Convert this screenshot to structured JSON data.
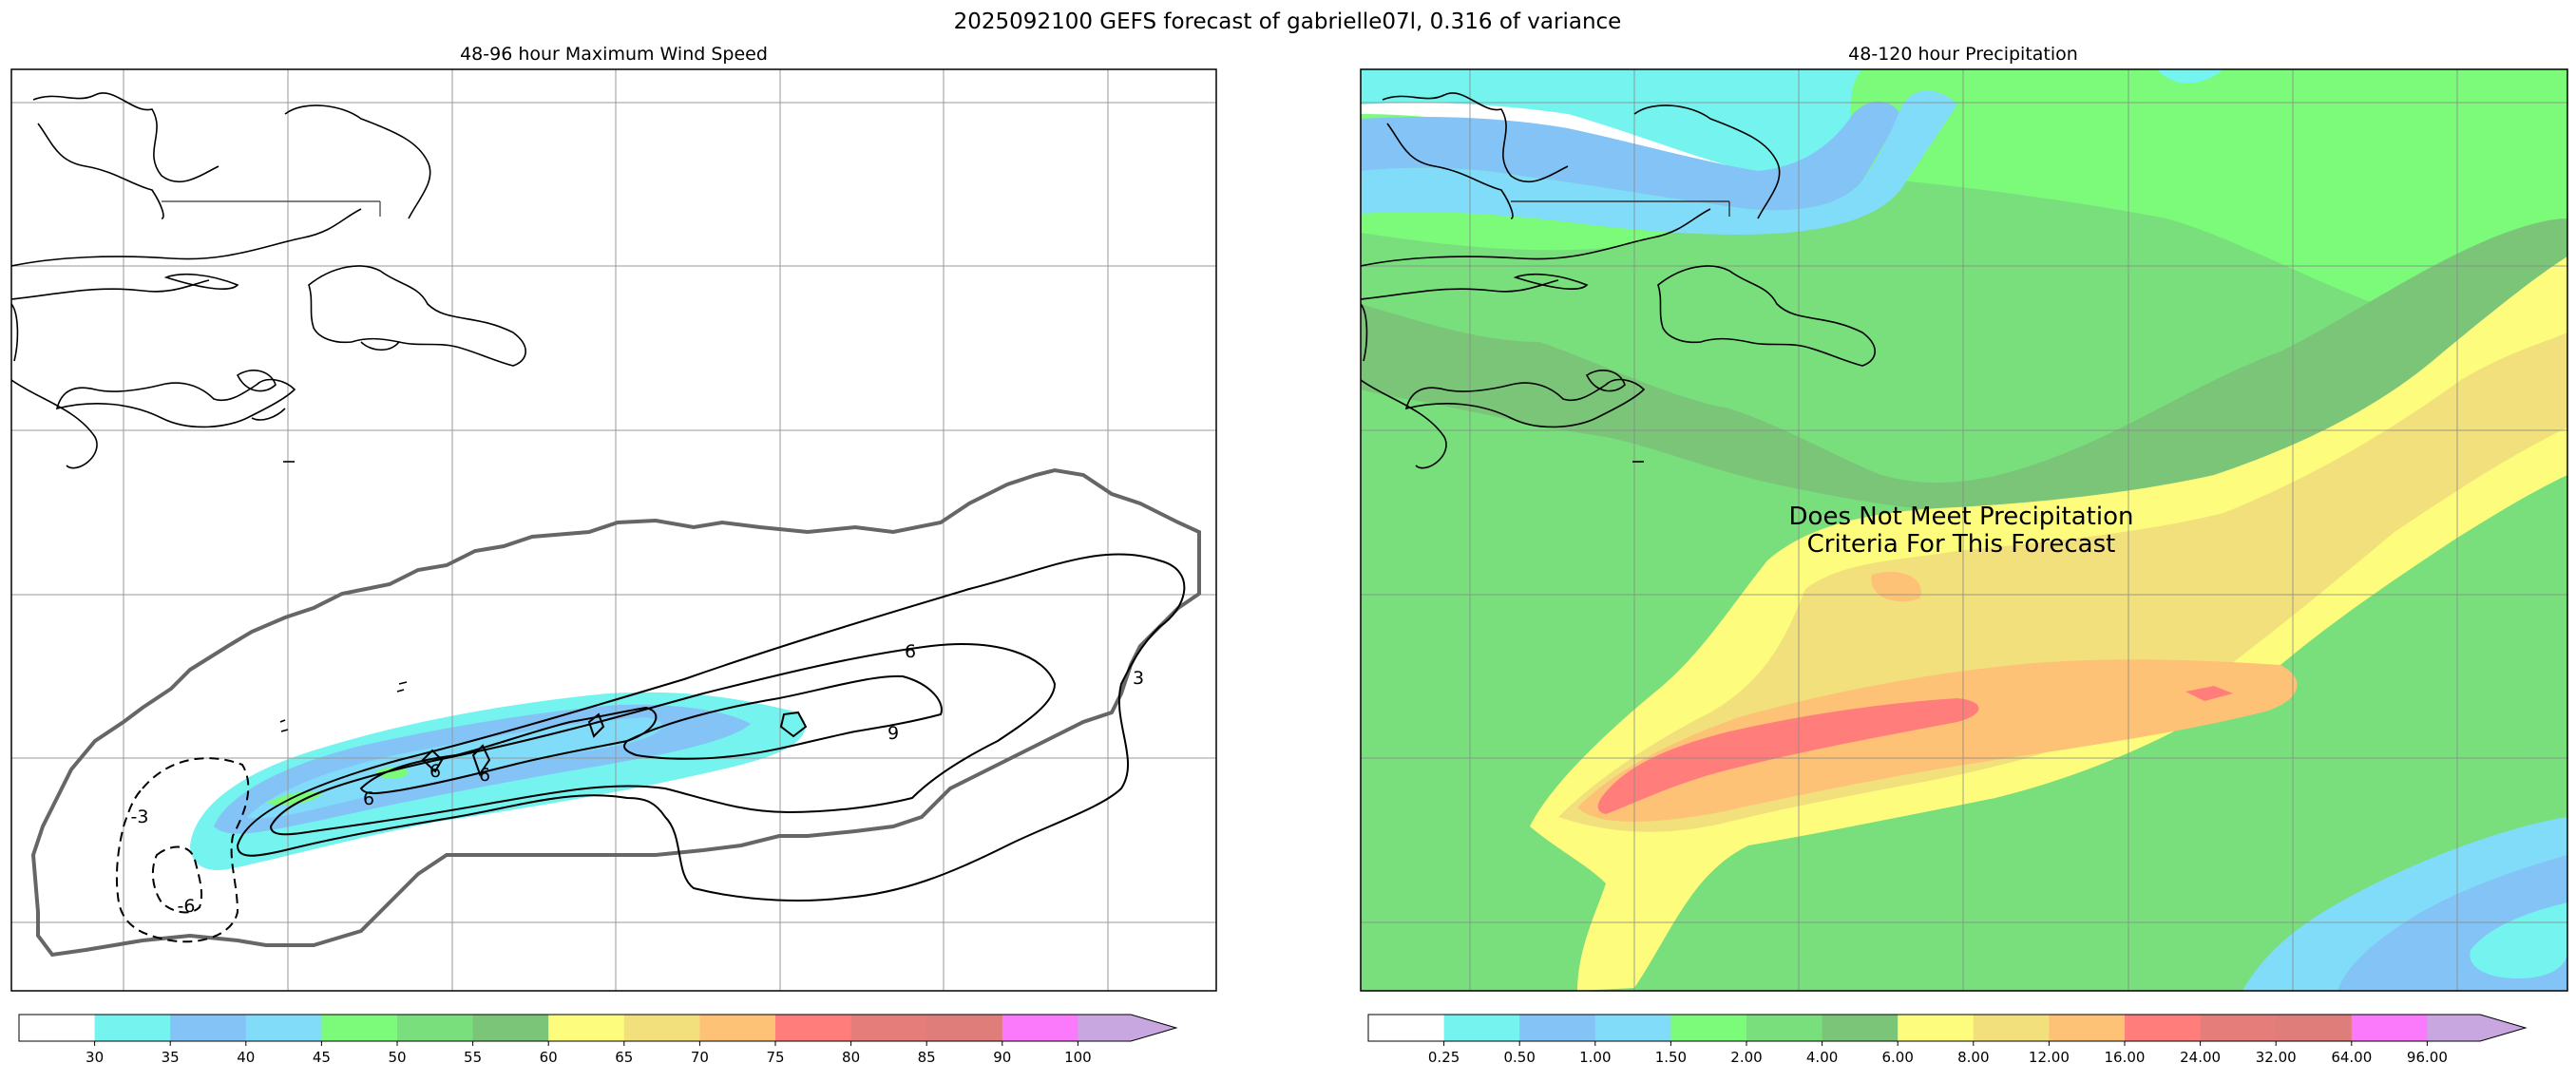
{
  "figure": {
    "suptitle": "2025092100 GEFS forecast of gabrielle07l, 0.316 of variance"
  },
  "left_panel": {
    "title": "48-96 hour Maximum Wind Speed",
    "contour_labels": [
      "6",
      "9",
      "-3",
      "-6",
      "6",
      "6",
      "6",
      "3"
    ]
  },
  "right_panel": {
    "title": "48-120 hour Precipitation",
    "message_line1": "Does Not Meet Precipitation",
    "message_line2": "Criteria For This Forecast"
  },
  "colorbar_left": {
    "ticks": [
      "30",
      "35",
      "40",
      "45",
      "50",
      "55",
      "60",
      "65",
      "70",
      "75",
      "80",
      "85",
      "90",
      "100"
    ],
    "colors": [
      "#ffffff",
      "#74f3ef",
      "#84c3f5",
      "#80dcf9",
      "#7cfa7a",
      "#79de7c",
      "#7bc579",
      "#fdfc7d",
      "#f1e07c",
      "#fdc276",
      "#ff7e7c",
      "#e57e7b",
      "#de7d7a",
      "#fb79fb",
      "#c8a6df"
    ]
  },
  "colorbar_right": {
    "ticks": [
      "0.25",
      "0.50",
      "1.00",
      "1.50",
      "2.00",
      "4.00",
      "6.00",
      "8.00",
      "12.00",
      "16.00",
      "24.00",
      "32.00",
      "64.00",
      "96.00"
    ],
    "colors": [
      "#ffffff",
      "#74f3ef",
      "#84c3f5",
      "#80dcf9",
      "#7cfa7a",
      "#79de7c",
      "#7bc579",
      "#fdfc7d",
      "#f1e07c",
      "#fdc276",
      "#ff7e7c",
      "#e57e7b",
      "#de7d7a",
      "#fb79fb",
      "#c8a6df"
    ]
  }
}
